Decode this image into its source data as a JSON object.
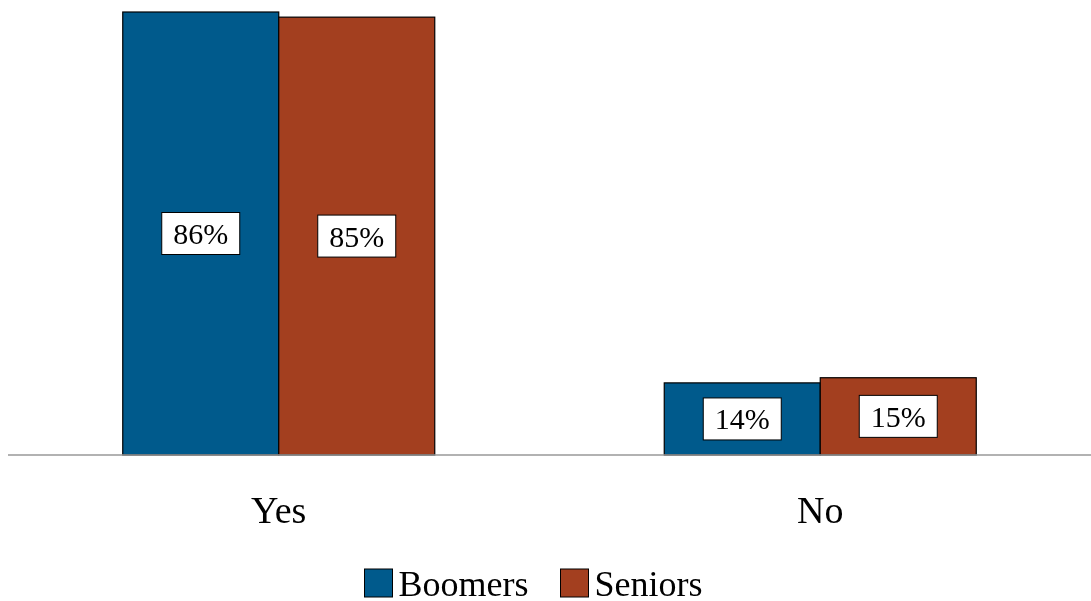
{
  "chart_data": {
    "type": "bar",
    "categories": [
      "Yes",
      "No"
    ],
    "series": [
      {
        "name": "Boomers",
        "color": "#005a8c",
        "values": [
          86,
          14
        ],
        "value_labels": [
          "86%",
          "14%"
        ]
      },
      {
        "name": "Seniors",
        "color": "#a33f1f",
        "values": [
          85,
          15
        ],
        "value_labels": [
          "85%",
          "15%"
        ]
      }
    ],
    "legend": "bottom"
  }
}
